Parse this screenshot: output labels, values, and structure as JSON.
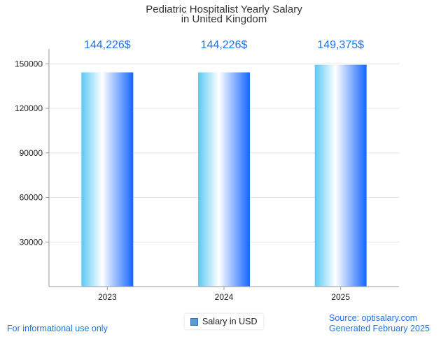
{
  "chart_data": {
    "type": "bar",
    "title": [
      "Pediatric Hospitalist Yearly Salary",
      "in United Kingdom"
    ],
    "categories": [
      "2023",
      "2024",
      "2025"
    ],
    "series": [
      {
        "name": "Salary in USD",
        "values": [
          144226,
          144226,
          149375
        ]
      }
    ],
    "data_labels": [
      "144,226$",
      "144,226$",
      "149,375$"
    ],
    "y_ticks": [
      30000,
      60000,
      90000,
      120000,
      150000
    ],
    "ylim": [
      0,
      160000
    ],
    "grid": true,
    "legend_position": "bottom-center"
  },
  "colors": {
    "bar_light": "#c8ecff",
    "bar_mid": "#5bc8f5",
    "bar_dark": "#1565ff",
    "label": "#1a73e8",
    "grid": "#e6e6e6",
    "axis": "#999999"
  },
  "footer": {
    "left": "For informational use only",
    "source": "Source: optisalary.com",
    "generated": "Generated February 2025"
  },
  "legend": {
    "label": "Salary in USD"
  }
}
